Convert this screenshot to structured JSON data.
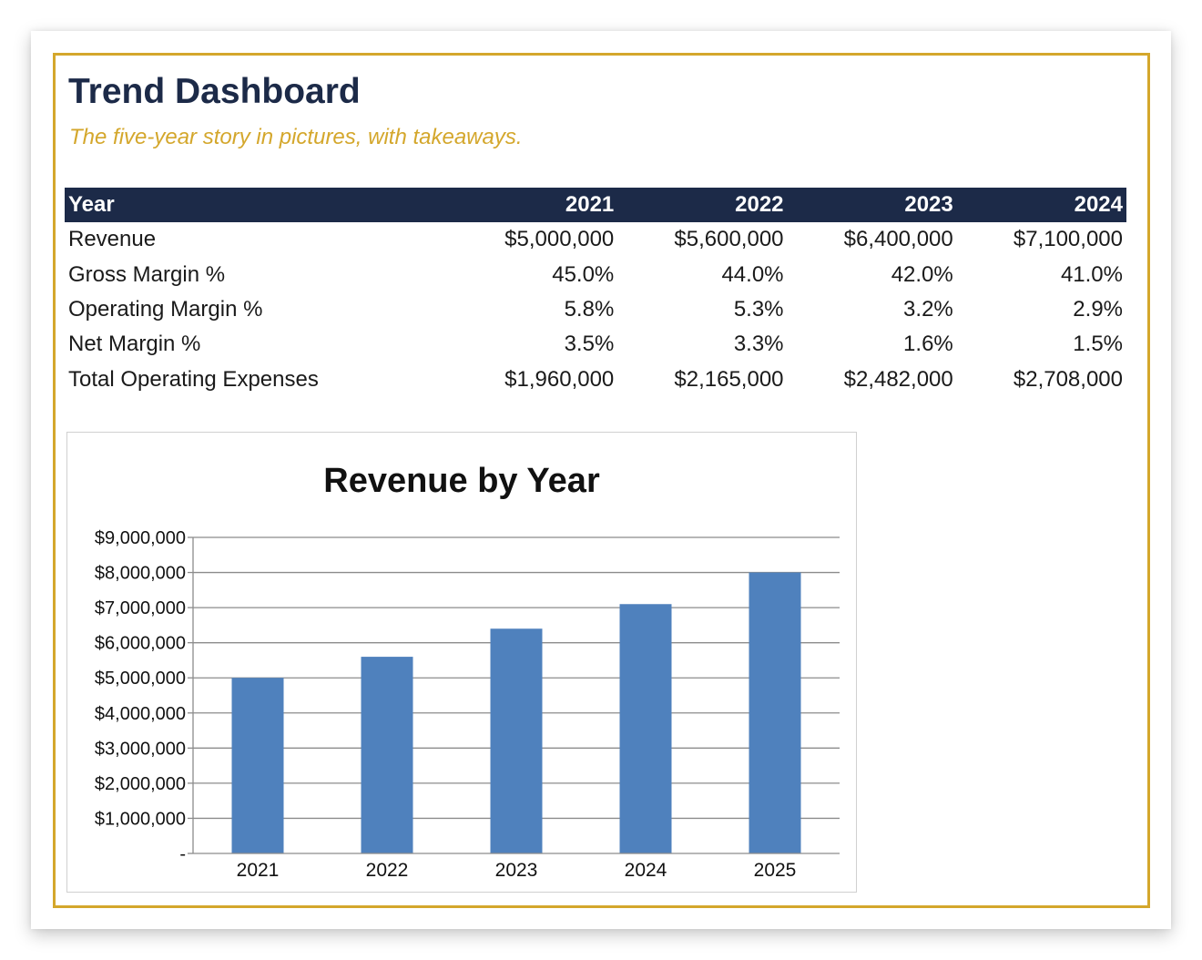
{
  "header": {
    "title": "Trend Dashboard",
    "subtitle": "The five-year story in pictures, with takeaways."
  },
  "table": {
    "header_label": "Year",
    "years": [
      "2021",
      "2022",
      "2023",
      "2024"
    ],
    "rows": [
      {
        "label": "Revenue",
        "values": [
          "$5,000,000",
          "$5,600,000",
          "$6,400,000",
          "$7,100,000"
        ]
      },
      {
        "label": "Gross Margin %",
        "values": [
          "45.0%",
          "44.0%",
          "42.0%",
          "41.0%"
        ]
      },
      {
        "label": "Operating Margin %",
        "values": [
          "5.8%",
          "5.3%",
          "3.2%",
          "2.9%"
        ]
      },
      {
        "label": "Net Margin %",
        "values": [
          "3.5%",
          "3.3%",
          "1.6%",
          "1.5%"
        ]
      },
      {
        "label": "Total Operating Expenses",
        "values": [
          "$1,960,000",
          "$2,165,000",
          "$2,482,000",
          "$2,708,000"
        ]
      }
    ]
  },
  "colors": {
    "navy": "#1c2a48",
    "gold": "#d4a72c",
    "bar": "#4f81bd",
    "grid": "#8c8c8c"
  },
  "chart_data": {
    "type": "bar",
    "title": "Revenue by Year",
    "categories": [
      "2021",
      "2022",
      "2023",
      "2024",
      "2025"
    ],
    "values": [
      5000000,
      5600000,
      6400000,
      7100000,
      8000000
    ],
    "ylim": [
      0,
      9000000
    ],
    "y_ticks": [
      0,
      1000000,
      2000000,
      3000000,
      4000000,
      5000000,
      6000000,
      7000000,
      8000000,
      9000000
    ],
    "y_tick_labels": [
      "-",
      "$1,000,000",
      "$2,000,000",
      "$3,000,000",
      "$4,000,000",
      "$5,000,000",
      "$6,000,000",
      "$7,000,000",
      "$8,000,000",
      "$9,000,000"
    ],
    "grid": true,
    "legend": "none"
  }
}
